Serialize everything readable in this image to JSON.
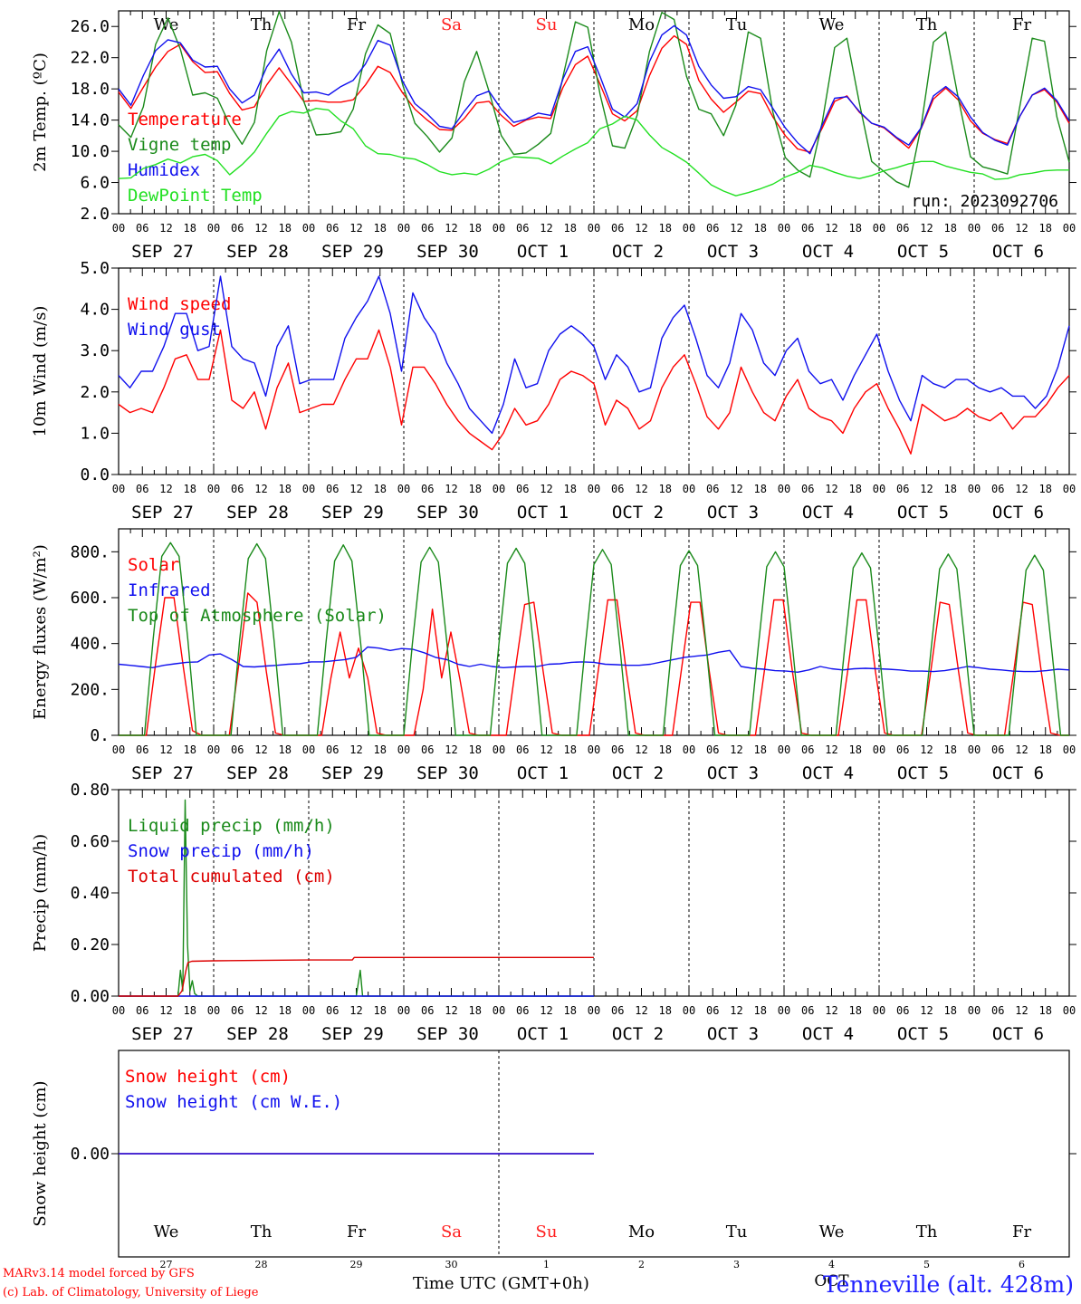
{
  "chart_data": [
    {
      "type": "line",
      "ylabel": "2m Temp. (ºC)",
      "ylim": [
        2,
        28
      ],
      "yticks": [
        "2.0",
        "6.0",
        "10.0",
        "14.0",
        "18.0",
        "22.0",
        "26.0"
      ],
      "annotation": "run: 2023092706",
      "day_labels": [
        "We",
        "Th",
        "Fr",
        "Sa",
        "Su",
        "Mo",
        "Tu",
        "We",
        "Th",
        "Fr"
      ],
      "weekend_color": "#ff2020",
      "series": [
        {
          "name": "Temperature",
          "color": "#ff0000",
          "values": [
            17.6,
            15.5,
            18.2,
            20.8,
            22.8,
            23.7,
            21.5,
            20.1,
            20.2,
            17.4,
            15.3,
            15.7,
            18.5,
            20.7,
            18.6,
            16.4,
            16.5,
            16.3,
            16.3,
            16.6,
            18.5,
            20.9,
            20.1,
            17.5,
            15.4,
            14.0,
            12.8,
            12.7,
            14.2,
            16.2,
            16.4,
            14.6,
            13.2,
            14.0,
            14.4,
            14.2,
            18.2,
            21.1,
            22.2,
            18.6,
            14.8,
            13.9,
            15.2,
            19.7,
            23.2,
            24.8,
            23.7,
            19.1,
            16.7,
            15.0,
            16.3,
            17.7,
            17.4,
            14.4,
            12.0,
            10.3,
            9.9,
            13.0,
            16.4,
            17.1,
            15.0,
            13.6,
            13.0,
            11.7,
            10.4,
            12.9,
            16.7,
            18.1,
            16.6,
            13.9,
            12.3,
            11.5,
            11.0,
            14.5,
            17.2,
            17.9,
            16.3,
            13.6
          ]
        },
        {
          "name": "Vigne temp",
          "color": "#1a8a1a",
          "values": [
            13.4,
            11.8,
            15.7,
            23.7,
            27.1,
            23.1,
            17.2,
            17.5,
            16.8,
            13.4,
            10.9,
            13.7,
            22.9,
            27.9,
            24.0,
            16.4,
            12.1,
            12.2,
            12.5,
            15.4,
            22.5,
            26.2,
            25.1,
            18.6,
            13.6,
            11.9,
            9.9,
            11.7,
            18.9,
            22.8,
            17.7,
            12.0,
            9.6,
            9.8,
            10.9,
            12.3,
            19.6,
            26.6,
            25.9,
            17.3,
            10.7,
            10.4,
            14.6,
            22.8,
            27.8,
            26.9,
            19.6,
            15.4,
            14.8,
            12.0,
            15.9,
            25.3,
            24.5,
            15.0,
            9.2,
            7.6,
            6.7,
            13.8,
            23.3,
            24.5,
            16.2,
            8.7,
            7.4,
            6.1,
            5.4,
            13.2,
            24.0,
            25.3,
            16.9,
            9.3,
            8.0,
            7.6,
            7.1,
            15.8,
            24.5,
            24.1,
            14.4,
            8.6
          ]
        },
        {
          "name": "Humidex",
          "color": "#1010ee",
          "values": [
            18.0,
            15.9,
            19.7,
            22.9,
            24.3,
            23.9,
            21.7,
            20.8,
            20.9,
            18.0,
            16.2,
            17.2,
            20.8,
            23.1,
            19.9,
            17.5,
            17.6,
            17.2,
            18.3,
            19.1,
            21.2,
            24.2,
            23.6,
            19.0,
            16.1,
            14.8,
            13.2,
            12.9,
            15.1,
            17.1,
            17.7,
            15.4,
            13.7,
            14.1,
            14.9,
            14.6,
            19.3,
            22.8,
            23.4,
            19.6,
            15.4,
            14.4,
            16.1,
            21.5,
            24.9,
            26.1,
            24.9,
            20.9,
            18.5,
            16.8,
            17.0,
            18.3,
            17.9,
            15.5,
            13.0,
            11.1,
            9.7,
            13.4,
            16.8,
            17.0,
            15.1,
            13.6,
            13.1,
            11.8,
            10.8,
            13.0,
            17.1,
            18.3,
            17.0,
            14.4,
            12.4,
            11.4,
            10.8,
            14.5,
            17.2,
            18.1,
            16.5,
            13.9
          ]
        },
        {
          "name": "DewPoint Temp",
          "color": "#22e022",
          "values": [
            6.5,
            6.6,
            7.8,
            8.3,
            9.0,
            8.5,
            9.3,
            9.6,
            8.8,
            7.0,
            8.3,
            9.9,
            12.3,
            14.5,
            15.1,
            14.9,
            15.5,
            15.3,
            13.9,
            12.9,
            10.7,
            9.7,
            9.6,
            9.2,
            9.0,
            8.3,
            7.4,
            7.0,
            7.2,
            7.0,
            7.7,
            8.7,
            9.3,
            9.2,
            9.1,
            8.4,
            9.4,
            10.3,
            11.1,
            12.9,
            13.5,
            14.5,
            14.0,
            12.1,
            10.5,
            9.6,
            8.6,
            7.2,
            5.7,
            4.9,
            4.3,
            4.7,
            5.2,
            5.8,
            6.7,
            7.3,
            8.2,
            7.9,
            7.3,
            6.8,
            6.5,
            6.9,
            7.5,
            7.9,
            8.4,
            8.7,
            8.7,
            8.1,
            7.7,
            7.3,
            7.1,
            6.4,
            6.5,
            7.0,
            7.2,
            7.5,
            7.6,
            7.6
          ]
        }
      ]
    },
    {
      "type": "line",
      "ylabel": "10m Wind (m/s)",
      "ylim": [
        0,
        5
      ],
      "yticks": [
        "0.0",
        "1.0",
        "2.0",
        "3.0",
        "4.0",
        "5.0"
      ],
      "series": [
        {
          "name": "Wind speed",
          "color": "#ff0000",
          "values": [
            1.7,
            1.5,
            1.6,
            1.5,
            2.1,
            2.8,
            2.9,
            2.3,
            2.3,
            3.5,
            1.8,
            1.6,
            2.0,
            1.1,
            2.1,
            2.7,
            1.5,
            1.6,
            1.7,
            1.7,
            2.3,
            2.8,
            2.8,
            3.5,
            2.6,
            1.2,
            2.6,
            2.6,
            2.2,
            1.7,
            1.3,
            1.0,
            0.8,
            0.6,
            1.0,
            1.6,
            1.2,
            1.3,
            1.7,
            2.3,
            2.5,
            2.4,
            2.2,
            1.2,
            1.8,
            1.6,
            1.1,
            1.3,
            2.1,
            2.6,
            2.9,
            2.2,
            1.4,
            1.1,
            1.5,
            2.6,
            2.0,
            1.5,
            1.3,
            1.9,
            2.3,
            1.6,
            1.4,
            1.3,
            1.0,
            1.6,
            2.0,
            2.2,
            1.6,
            1.1,
            0.5,
            1.7,
            1.5,
            1.3,
            1.4,
            1.6,
            1.4,
            1.3,
            1.5,
            1.1,
            1.4,
            1.4,
            1.7,
            2.1,
            2.4
          ]
        },
        {
          "name": "Wind gust",
          "color": "#1010ee",
          "values": [
            2.4,
            2.1,
            2.5,
            2.5,
            3.1,
            3.9,
            3.9,
            3.0,
            3.1,
            4.8,
            3.1,
            2.8,
            2.7,
            1.9,
            3.1,
            3.6,
            2.2,
            2.3,
            2.3,
            2.3,
            3.3,
            3.8,
            4.2,
            4.8,
            3.9,
            2.5,
            4.4,
            3.8,
            3.4,
            2.7,
            2.2,
            1.6,
            1.3,
            1.0,
            1.7,
            2.8,
            2.1,
            2.2,
            3.0,
            3.4,
            3.6,
            3.4,
            3.1,
            2.3,
            2.9,
            2.6,
            2.0,
            2.1,
            3.3,
            3.8,
            4.1,
            3.3,
            2.4,
            2.1,
            2.7,
            3.9,
            3.5,
            2.7,
            2.4,
            3.0,
            3.3,
            2.5,
            2.2,
            2.3,
            1.8,
            2.4,
            2.9,
            3.4,
            2.5,
            1.8,
            1.3,
            2.4,
            2.2,
            2.1,
            2.3,
            2.3,
            2.1,
            2.0,
            2.1,
            1.9,
            1.9,
            1.6,
            1.9,
            2.6,
            3.6
          ]
        }
      ]
    },
    {
      "type": "line",
      "ylabel": "Energy fluxes (W/m²)",
      "ylim": [
        0,
        900
      ],
      "yticks": [
        "0.",
        "200.",
        "400.",
        "600.",
        "800."
      ],
      "series": [
        {
          "name": "Solar",
          "color": "#ff0000",
          "values": [
            0,
            0,
            0,
            0,
            310,
            600,
            600,
            300,
            20,
            0,
            0,
            0,
            0,
            300,
            620,
            580,
            280,
            10,
            0,
            0,
            0,
            0,
            0,
            250,
            450,
            250,
            380,
            250,
            10,
            0,
            0,
            0,
            0,
            200,
            550,
            250,
            450,
            240,
            10,
            0,
            0,
            0,
            0,
            290,
            570,
            580,
            280,
            10,
            0,
            0,
            0,
            0,
            290,
            590,
            590,
            280,
            10,
            0,
            0,
            0,
            0,
            290,
            580,
            580,
            280,
            10,
            0,
            0,
            0,
            0,
            290,
            590,
            590,
            280,
            10,
            0,
            0,
            0,
            0,
            280,
            590,
            590,
            280,
            10,
            0,
            0,
            0,
            0,
            280,
            580,
            570,
            280,
            10,
            0,
            0,
            0,
            0,
            280,
            580,
            570,
            270,
            10,
            0,
            0
          ]
        },
        {
          "name": "Infrared",
          "color": "#1010ee",
          "values": [
            310,
            305,
            300,
            295,
            305,
            312,
            318,
            320,
            350,
            355,
            330,
            300,
            298,
            302,
            305,
            310,
            312,
            320,
            320,
            325,
            330,
            340,
            385,
            380,
            370,
            378,
            375,
            360,
            340,
            330,
            310,
            300,
            310,
            300,
            295,
            298,
            300,
            300,
            310,
            312,
            318,
            320,
            318,
            310,
            308,
            305,
            305,
            310,
            320,
            330,
            340,
            345,
            350,
            362,
            370,
            300,
            292,
            288,
            282,
            280,
            275,
            285,
            300,
            290,
            285,
            290,
            292,
            290,
            288,
            285,
            280,
            280,
            278,
            282,
            290,
            300,
            295,
            288,
            285,
            280,
            278,
            278,
            282,
            288,
            285
          ]
        },
        {
          "name": "Top of Atmosphere (Solar)",
          "color": "#1a8a1a",
          "values": [
            0,
            0,
            0,
            0,
            420,
            780,
            840,
            780,
            420,
            0,
            0,
            0,
            0,
            0,
            410,
            770,
            835,
            770,
            410,
            0,
            0,
            0,
            0,
            0,
            405,
            760,
            830,
            760,
            405,
            0,
            0,
            0,
            0,
            0,
            400,
            755,
            820,
            755,
            400,
            0,
            0,
            0,
            0,
            0,
            395,
            750,
            815,
            750,
            395,
            0,
            0,
            0,
            0,
            0,
            390,
            745,
            810,
            745,
            390,
            0,
            0,
            0,
            0,
            0,
            385,
            740,
            805,
            740,
            385,
            0,
            0,
            0,
            0,
            0,
            380,
            735,
            800,
            735,
            380,
            0,
            0,
            0,
            0,
            0,
            375,
            730,
            795,
            730,
            375,
            0,
            0,
            0,
            0,
            0,
            370,
            725,
            790,
            725,
            370,
            0,
            0,
            0,
            0,
            0,
            365,
            720,
            785,
            720,
            365,
            0,
            0
          ]
        }
      ]
    },
    {
      "type": "line",
      "ylabel": "Precip (mm/h)",
      "ylim": [
        0,
        0.8
      ],
      "yticks": [
        "0.00",
        "0.20",
        "0.40",
        "0.60",
        "0.80"
      ],
      "series": [
        {
          "name": "Liquid precip (mm/h)",
          "color": "#1a8a1a",
          "points": [
            [
              0,
              0
            ],
            [
              15,
              0
            ],
            [
              15.6,
              0.1
            ],
            [
              16.2,
              0.02
            ],
            [
              16.8,
              0.76
            ],
            [
              17.4,
              0.2
            ],
            [
              18,
              0.02
            ],
            [
              18.6,
              0.06
            ],
            [
              19.2,
              0.01
            ],
            [
              20,
              0
            ],
            [
              60,
              0
            ],
            [
              61,
              0.1
            ],
            [
              61.6,
              0
            ],
            [
              120,
              0
            ]
          ]
        },
        {
          "name": "Snow precip (mm/h)",
          "color": "#1010ee",
          "points": [
            [
              0,
              0
            ],
            [
              120,
              0
            ]
          ]
        },
        {
          "name": "Total cumulated (cm)",
          "color": "#dd0000",
          "points": [
            [
              0,
              0
            ],
            [
              15,
              0
            ],
            [
              16,
              0.02
            ],
            [
              17,
              0.1
            ],
            [
              17.5,
              0.13
            ],
            [
              18.5,
              0.135
            ],
            [
              24,
              0.137
            ],
            [
              48,
              0.14
            ],
            [
              59,
              0.14
            ],
            [
              59.5,
              0.15
            ],
            [
              120,
              0.15
            ]
          ]
        }
      ]
    },
    {
      "type": "line",
      "ylabel": "Snow height (cm)",
      "ylim": [
        -1,
        1
      ],
      "yticks": [
        "0.00"
      ],
      "series": [
        {
          "name": "Snow height (cm)",
          "color": "#ff0000",
          "points": [
            [
              0,
              0
            ],
            [
              120,
              0
            ]
          ]
        },
        {
          "name": "Snow height (cm W.E.)",
          "color": "#1010ee",
          "points": [
            [
              0,
              0
            ],
            [
              120,
              0
            ]
          ]
        }
      ],
      "day_labels": [
        "We",
        "Th",
        "Fr",
        "Sa",
        "Su",
        "Mo",
        "Tu",
        "We",
        "Th",
        "Fr"
      ],
      "day_numbers": [
        "27",
        "28",
        "29",
        "30",
        "1",
        "2",
        "3",
        "4",
        "5",
        "6"
      ],
      "month_label": "OCT"
    }
  ],
  "time_axis": {
    "hour_labels": [
      "00",
      "06",
      "12",
      "18"
    ],
    "date_labels": [
      "SEP 27",
      "SEP 28",
      "SEP 29",
      "SEP 30",
      "OCT  1",
      "OCT  2",
      "OCT  3",
      "OCT  4",
      "OCT  5",
      "OCT  6"
    ],
    "title": "Time UTC (GMT+0h)"
  },
  "footer": {
    "credit1": "MARv3.14 model forced by GFS",
    "credit2": "(c) Lab. of Climatology, University of Liege",
    "location": "Tenneville (alt. 428m)"
  }
}
